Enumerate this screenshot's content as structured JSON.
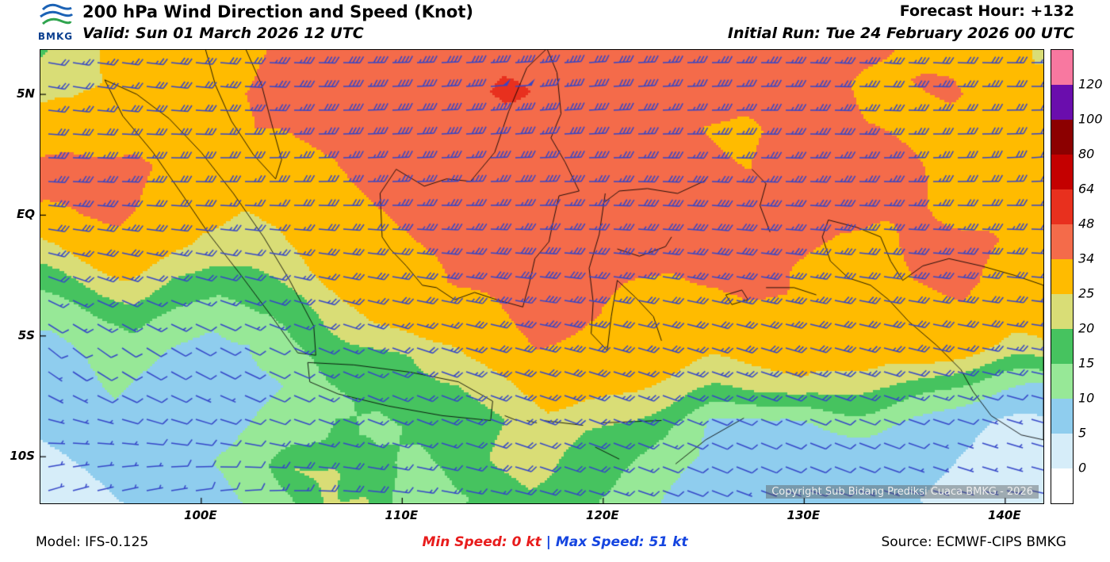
{
  "header": {
    "title": "200 hPa Wind Direction and Speed (Knot)",
    "valid": "Valid: Sun 01 March 2026 12 UTC",
    "forecast_hour": "Forecast Hour: +132",
    "initial_run": "Initial Run: Tue 24 February 2026 00 UTC",
    "logo_text": "BMKG"
  },
  "map": {
    "copyright": "Copyright Sub Bidang Prediksi Cuaca BMKG - 2026",
    "lat_ticks": [
      {
        "label": "5N",
        "value": 5
      },
      {
        "label": "EQ",
        "value": 0
      },
      {
        "label": "5S",
        "value": -5
      },
      {
        "label": "10S",
        "value": -10
      }
    ],
    "lon_ticks": [
      {
        "label": "100E",
        "value": 100
      },
      {
        "label": "110E",
        "value": 110
      },
      {
        "label": "120E",
        "value": 120
      },
      {
        "label": "130E",
        "value": 130
      },
      {
        "label": "140E",
        "value": 140
      }
    ]
  },
  "legend": {
    "values_top_to_bottom": [
      120,
      100,
      80,
      64,
      48,
      34,
      25,
      20,
      15,
      10,
      5,
      0
    ]
  },
  "footer": {
    "model": "Model: IFS-0.125",
    "min": "Min Speed:  0 kt",
    "sep": "|",
    "max": "Max Speed:  51 kt",
    "source": "Source: ECMWF-CIPS BMKG",
    "min_color": "#E81C1C",
    "max_color": "#1545E0",
    "sep_color": "#1545E0"
  },
  "chart_data": {
    "type": "heatmap",
    "title": "200 hPa Wind Direction and Speed (Knot)",
    "units": "knot",
    "lon_range": [
      92.0,
      141.9
    ],
    "lat_range": [
      -11.93,
      6.84
    ],
    "min_speed_kt": 0,
    "max_speed_kt": 51,
    "speed_thresholds": [
      0,
      5,
      10,
      15,
      20,
      25,
      34,
      48,
      64,
      80,
      100,
      120
    ],
    "speed_colors": [
      "#FFFFFF",
      "#D6EDF9",
      "#8FCDEE",
      "#97E897",
      "#46C35F",
      "#D9DD76",
      "#FFBB00",
      "#F46B4A",
      "#E8301E",
      "#C40000",
      "#8C0000",
      "#6A0DAD",
      "#F878A0"
    ],
    "barb_color": "#3546C8",
    "speed_grid": [
      [
        18,
        24,
        26,
        28,
        30,
        30,
        36,
        40,
        42,
        44,
        40,
        44,
        46,
        42,
        38,
        36,
        34,
        38,
        36,
        34,
        36,
        32,
        30,
        30,
        24
      ],
      [
        24,
        22,
        26,
        30,
        32,
        34,
        38,
        42,
        44,
        40,
        42,
        51,
        46,
        42,
        40,
        36,
        38,
        36,
        34,
        36,
        32,
        34,
        36,
        30,
        28
      ],
      [
        26,
        28,
        30,
        32,
        30,
        34,
        36,
        38,
        40,
        38,
        40,
        42,
        44,
        40,
        38,
        36,
        34,
        32,
        36,
        38,
        34,
        32,
        30,
        28,
        30
      ],
      [
        34,
        34,
        36,
        32,
        30,
        28,
        32,
        34,
        36,
        38,
        36,
        38,
        40,
        38,
        36,
        38,
        36,
        34,
        38,
        36,
        38,
        34,
        32,
        30,
        28
      ],
      [
        36,
        38,
        36,
        30,
        28,
        26,
        30,
        32,
        34,
        36,
        34,
        36,
        38,
        36,
        38,
        40,
        38,
        36,
        34,
        38,
        36,
        34,
        30,
        32,
        30
      ],
      [
        26,
        30,
        32,
        28,
        24,
        22,
        26,
        30,
        32,
        34,
        36,
        38,
        36,
        34,
        36,
        38,
        40,
        38,
        36,
        34,
        32,
        36,
        38,
        34,
        30
      ],
      [
        18,
        22,
        24,
        20,
        18,
        20,
        24,
        28,
        30,
        32,
        36,
        38,
        40,
        36,
        34,
        32,
        36,
        38,
        34,
        32,
        30,
        34,
        36,
        32,
        28
      ],
      [
        12,
        14,
        16,
        14,
        12,
        16,
        18,
        22,
        26,
        28,
        30,
        34,
        38,
        36,
        32,
        30,
        28,
        32,
        34,
        30,
        28,
        30,
        32,
        28,
        26
      ],
      [
        8,
        10,
        12,
        10,
        8,
        10,
        14,
        16,
        18,
        20,
        24,
        30,
        34,
        32,
        30,
        28,
        26,
        28,
        30,
        28,
        26,
        28,
        26,
        24,
        25
      ],
      [
        6,
        8,
        10,
        8,
        6,
        8,
        10,
        14,
        16,
        18,
        20,
        24,
        28,
        26,
        24,
        22,
        20,
        22,
        24,
        20,
        18,
        16,
        14,
        12,
        10
      ],
      [
        5,
        6,
        8,
        10,
        8,
        10,
        12,
        16,
        14,
        16,
        18,
        20,
        22,
        20,
        18,
        16,
        10,
        8,
        8,
        10,
        10,
        8,
        6,
        5,
        4
      ],
      [
        4,
        5,
        6,
        8,
        10,
        12,
        20,
        21,
        16,
        14,
        16,
        21,
        22,
        18,
        16,
        12,
        10,
        8,
        8,
        10,
        8,
        6,
        5,
        4,
        3
      ],
      [
        3,
        4,
        5,
        6,
        8,
        10,
        12,
        20,
        21,
        12,
        14,
        16,
        18,
        16,
        14,
        10,
        8,
        6,
        6,
        8,
        6,
        5,
        4,
        3,
        3
      ]
    ],
    "direction_grid_deg_from": [
      [
        100,
        95,
        90,
        85,
        90,
        95,
        90
      ],
      [
        100,
        95,
        88,
        85,
        88,
        92,
        90
      ],
      [
        95,
        92,
        88,
        86,
        90,
        92,
        88
      ],
      [
        92,
        90,
        88,
        88,
        92,
        90,
        86
      ],
      [
        95,
        92,
        90,
        90,
        94,
        92,
        90
      ],
      [
        100,
        98,
        95,
        92,
        96,
        95,
        92
      ],
      [
        110,
        105,
        100,
        96,
        100,
        98,
        95
      ],
      [
        120,
        112,
        105,
        100,
        104,
        102,
        98
      ],
      [
        130,
        118,
        110,
        105,
        108,
        105,
        100
      ],
      [
        120,
        115,
        112,
        108,
        110,
        108,
        104
      ],
      [
        100,
        105,
        110,
        110,
        112,
        110,
        106
      ],
      [
        80,
        90,
        100,
        108,
        112,
        110,
        105
      ],
      [
        70,
        80,
        95,
        105,
        110,
        108,
        100
      ]
    ],
    "coastlines": [
      [
        [
          95.2,
          5.6
        ],
        [
          96.1,
          4.1
        ],
        [
          97.6,
          2.6
        ],
        [
          99.1,
          0.8
        ],
        [
          100.4,
          -0.8
        ],
        [
          101.9,
          -2.4
        ],
        [
          103.6,
          -4.3
        ],
        [
          104.8,
          -5.7
        ],
        [
          105.7,
          -5.8
        ],
        [
          105.6,
          -4.6
        ],
        [
          104.4,
          -2.7
        ],
        [
          103.1,
          -0.9
        ],
        [
          101.6,
          0.9
        ],
        [
          100.0,
          2.6
        ],
        [
          98.4,
          4.0
        ],
        [
          96.8,
          5.0
        ],
        [
          95.2,
          5.6
        ]
      ],
      [
        [
          105.3,
          -6.1
        ],
        [
          107.6,
          -6.2
        ],
        [
          110.4,
          -6.5
        ],
        [
          112.8,
          -6.9
        ],
        [
          114.5,
          -7.7
        ],
        [
          114.4,
          -8.5
        ],
        [
          112.0,
          -8.3
        ],
        [
          109.3,
          -7.9
        ],
        [
          106.8,
          -7.4
        ],
        [
          105.4,
          -6.9
        ],
        [
          105.3,
          -6.1
        ]
      ],
      [
        [
          109.0,
          -0.9
        ],
        [
          108.9,
          0.9
        ],
        [
          109.7,
          1.9
        ],
        [
          111.1,
          1.2
        ],
        [
          112.2,
          1.5
        ],
        [
          113.4,
          1.4
        ],
        [
          114.6,
          2.6
        ],
        [
          115.3,
          4.3
        ],
        [
          116.2,
          6.1
        ],
        [
          117.2,
          6.9
        ],
        [
          117.7,
          5.9
        ],
        [
          117.9,
          4.2
        ],
        [
          117.4,
          3.2
        ],
        [
          118.1,
          2.2
        ],
        [
          118.8,
          1.0
        ],
        [
          117.8,
          0.8
        ],
        [
          117.5,
          -0.3
        ],
        [
          117.3,
          -1.1
        ],
        [
          116.6,
          -1.8
        ],
        [
          116.3,
          -2.9
        ],
        [
          116.0,
          -3.8
        ],
        [
          114.7,
          -3.5
        ],
        [
          113.6,
          -3.2
        ],
        [
          112.6,
          -3.5
        ],
        [
          111.7,
          -3.0
        ],
        [
          111.0,
          -2.9
        ],
        [
          110.2,
          -2.1
        ],
        [
          109.4,
          -1.4
        ],
        [
          109.0,
          -0.9
        ]
      ],
      [
        [
          120.1,
          0.9
        ],
        [
          119.8,
          -0.8
        ],
        [
          119.3,
          -2.2
        ],
        [
          119.5,
          -3.6
        ],
        [
          119.4,
          -4.9
        ],
        [
          120.2,
          -5.6
        ],
        [
          120.4,
          -4.2
        ],
        [
          120.7,
          -2.7
        ],
        [
          121.6,
          -3.4
        ],
        [
          122.5,
          -4.2
        ],
        [
          122.9,
          -5.2
        ]
      ],
      [
        [
          120.0,
          0.5
        ],
        [
          120.8,
          1.0
        ],
        [
          122.2,
          1.1
        ],
        [
          123.7,
          0.9
        ],
        [
          125.0,
          1.4
        ],
        [
          125.2,
          1.6
        ]
      ],
      [
        [
          120.7,
          -1.4
        ],
        [
          121.8,
          -1.7
        ],
        [
          123.1,
          -1.3
        ],
        [
          123.4,
          -0.9
        ]
      ],
      [
        [
          130.9,
          -0.9
        ],
        [
          131.2,
          -0.2
        ],
        [
          132.6,
          -0.5
        ],
        [
          133.8,
          -0.9
        ],
        [
          134.3,
          -1.9
        ],
        [
          134.9,
          -2.7
        ],
        [
          135.9,
          -2.1
        ],
        [
          137.2,
          -1.8
        ],
        [
          138.8,
          -2.1
        ],
        [
          140.5,
          -2.5
        ],
        [
          141.9,
          -2.9
        ],
        [
          141.9,
          -9.3
        ],
        [
          140.8,
          -9.1
        ],
        [
          139.3,
          -8.3
        ],
        [
          138.4,
          -7.3
        ],
        [
          137.8,
          -6.4
        ],
        [
          136.6,
          -5.4
        ],
        [
          135.2,
          -4.4
        ],
        [
          134.2,
          -3.5
        ],
        [
          133.3,
          -2.9
        ],
        [
          132.2,
          -2.6
        ],
        [
          131.3,
          -1.9
        ],
        [
          130.9,
          -0.9
        ]
      ],
      [
        [
          100.2,
          6.9
        ],
        [
          100.7,
          5.4
        ],
        [
          101.5,
          3.9
        ],
        [
          102.6,
          2.5
        ],
        [
          103.7,
          1.5
        ],
        [
          104.0,
          2.3
        ],
        [
          103.5,
          3.8
        ],
        [
          103.0,
          5.4
        ],
        [
          102.2,
          6.9
        ]
      ],
      [
        [
          115.1,
          -8.3
        ],
        [
          115.7,
          -8.5
        ]
      ],
      [
        [
          116.2,
          -8.5
        ],
        [
          116.7,
          -8.6
        ]
      ],
      [
        [
          117.0,
          -8.5
        ],
        [
          119.0,
          -8.7
        ]
      ],
      [
        [
          119.9,
          -8.6
        ],
        [
          122.9,
          -8.5
        ]
      ],
      [
        [
          119.6,
          -9.6
        ],
        [
          120.8,
          -10.1
        ]
      ],
      [
        [
          123.6,
          -10.3
        ],
        [
          125.1,
          -9.3
        ],
        [
          127.0,
          -8.4
        ]
      ],
      [
        [
          127.4,
          1.9
        ],
        [
          128.1,
          1.3
        ],
        [
          127.8,
          0.4
        ],
        [
          128.3,
          -0.7
        ]
      ],
      [
        [
          128.1,
          -3.0
        ],
        [
          129.5,
          -3.0
        ],
        [
          130.6,
          -3.3
        ]
      ],
      [
        [
          126.1,
          -3.3
        ],
        [
          126.9,
          -3.1
        ],
        [
          127.2,
          -3.5
        ],
        [
          126.4,
          -3.7
        ],
        [
          126.1,
          -3.3
        ]
      ]
    ]
  }
}
